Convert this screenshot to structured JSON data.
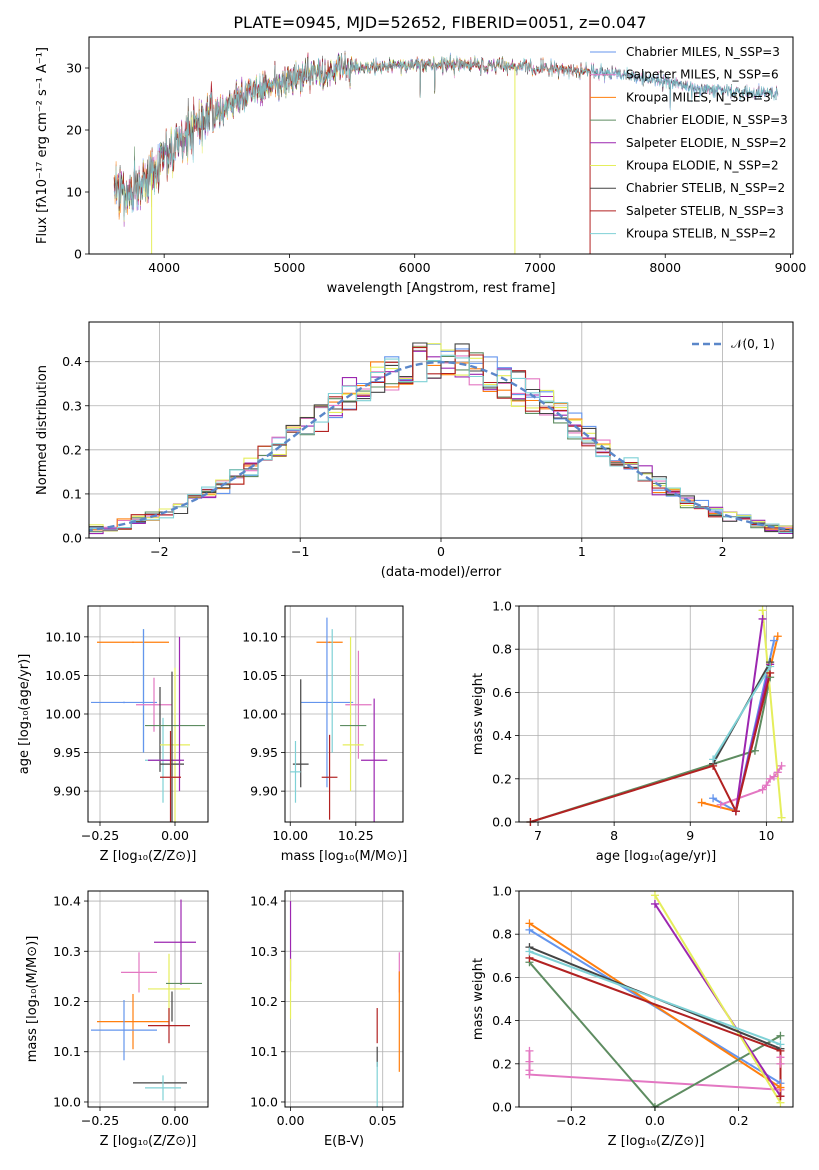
{
  "colors": {
    "chabrier_miles": "#6495ed",
    "salpeter_miles": "#e377c2",
    "kroupa_miles": "#ff7f0e",
    "chabrier_elodie": "#5e8c61",
    "salpeter_elodie": "#9c27b0",
    "kroupa_elodie": "#e5ee5c",
    "chabrier_stelib": "#444444",
    "salpeter_stelib": "#b22222",
    "kroupa_stelib": "#7fd1d6",
    "normal": "#5b87c9",
    "grid": "#b0b0b0"
  },
  "chart_data": [
    {
      "id": "spectrum",
      "type": "line",
      "title": "PLATE=0945, MJD=52652, FIBERID=0051, z=0.047",
      "xlabel": "wavelength [Angstrom, rest frame]",
      "ylabel": "Flux [fλ10⁻¹⁷ erg cm⁻² s⁻¹ A⁻¹]",
      "xlim": [
        3400,
        9020
      ],
      "ylim": [
        0,
        35
      ],
      "xticks": [
        4000,
        5000,
        6000,
        7000,
        8000,
        9000
      ],
      "yticks": [
        0,
        10,
        20,
        30
      ],
      "grid": false,
      "legend_position": "top-right",
      "continuum": [
        [
          3600,
          10
        ],
        [
          3800,
          11
        ],
        [
          3950,
          14
        ],
        [
          4100,
          18
        ],
        [
          4300,
          21
        ],
        [
          4500,
          24
        ],
        [
          4700,
          26
        ],
        [
          5000,
          28
        ],
        [
          5200,
          29
        ],
        [
          5500,
          30
        ],
        [
          6000,
          30.5
        ],
        [
          6500,
          30.5
        ],
        [
          7000,
          30
        ],
        [
          7400,
          29.5
        ],
        [
          7800,
          28.5
        ],
        [
          8200,
          27
        ],
        [
          8600,
          26
        ],
        [
          8900,
          26
        ]
      ],
      "series": [
        {
          "name": "Chabrier MILES, N_SSP=3",
          "color_key": "chabrier_miles",
          "x_end": 8900
        },
        {
          "name": "Salpeter MILES, N_SSP=6",
          "color_key": "salpeter_miles",
          "x_end": 8900
        },
        {
          "name": "Kroupa MILES, N_SSP=3",
          "color_key": "kroupa_miles",
          "x_end": 7400
        },
        {
          "name": "Chabrier ELODIE, N_SSP=3",
          "color_key": "chabrier_elodie",
          "x_end": 6800
        },
        {
          "name": "Salpeter ELODIE, N_SSP=2",
          "color_key": "salpeter_elodie",
          "x_end": 6800
        },
        {
          "name": "Kroupa ELODIE, N_SSP=2",
          "color_key": "kroupa_elodie",
          "x_end": 6800
        },
        {
          "name": "Chabrier STELIB, N_SSP=2",
          "color_key": "chabrier_stelib",
          "x_end": 8900
        },
        {
          "name": "Salpeter STELIB, N_SSP=3",
          "color_key": "salpeter_stelib",
          "x_end": 7400
        },
        {
          "name": "Kroupa STELIB, N_SSP=2",
          "color_key": "kroupa_stelib",
          "x_end": 8900
        }
      ],
      "drop_lines": [
        {
          "x": 3900,
          "color_key": "kroupa_elodie"
        },
        {
          "x": 6800,
          "color_key": "kroupa_elodie"
        },
        {
          "x": 7400,
          "color_key": "salpeter_stelib"
        }
      ]
    },
    {
      "id": "residuals",
      "type": "histogram",
      "xlabel": "(data-model)/error",
      "ylabel": "Normed distribution",
      "xlim": [
        -2.5,
        2.5
      ],
      "ylim": [
        0,
        0.49
      ],
      "xticks": [
        -2,
        -1,
        0,
        1,
        2
      ],
      "yticks": [
        0.0,
        0.1,
        0.2,
        0.3,
        0.4
      ],
      "grid": true,
      "legend_position": "top-right",
      "legend_label": "𝒩(0, 1)",
      "bin_width": 0.1
    },
    {
      "id": "age_vs_Z",
      "type": "errorbar",
      "xlabel": "Z [log₁₀(Z/Z⊙)]",
      "ylabel": "age  [log₁₀(age/yr)]",
      "xlim": [
        -0.29,
        0.11
      ],
      "ylim": [
        9.86,
        10.14
      ],
      "xticks": [
        -0.25,
        0.0
      ],
      "yticks": [
        9.9,
        9.95,
        10.0,
        10.05,
        10.1
      ],
      "points": [
        {
          "c": "kroupa_miles",
          "x": -0.14,
          "y": 10.093,
          "xerr": 0.12,
          "yerr": 0.001
        },
        {
          "c": "chabrier_miles",
          "x": -0.17,
          "y": 10.015,
          "xerr": 0.11,
          "yerr": 0.001
        },
        {
          "c": "kroupa_stelib",
          "x": -0.105,
          "y": 10.03,
          "xerr": 0.0,
          "yerr": 0.08
        },
        {
          "c": "chabrier_miles",
          "x": -0.105,
          "y": 10.03,
          "xerr": 0.0,
          "yerr": 0.08
        },
        {
          "c": "salpeter_miles",
          "x": -0.07,
          "y": 10.012,
          "xerr": 0.06,
          "yerr": 0.035
        },
        {
          "c": "chabrier_stelib",
          "x": -0.05,
          "y": 9.98,
          "xerr": 0.0,
          "yerr": 0.055
        },
        {
          "c": "kroupa_stelib",
          "x": -0.04,
          "y": 9.94,
          "xerr": 0.06,
          "yerr": 0.055
        },
        {
          "c": "kroupa_elodie",
          "x": 0.0,
          "y": 9.96,
          "xerr": 0.05,
          "yerr": 0.1
        },
        {
          "c": "chabrier_elodie",
          "x": 0.0,
          "y": 9.985,
          "xerr": 0.1,
          "yerr": 0.0
        },
        {
          "c": "salpeter_elodie",
          "x": -0.03,
          "y": 9.94,
          "xerr": 0.0,
          "yerr": 0.0
        },
        {
          "c": "salpeter_elodie",
          "x": -0.03,
          "y": 9.94,
          "xerr": 0.06,
          "yerr": 0.0
        },
        {
          "c": "chabrier_stelib",
          "x": -0.01,
          "y": 9.935,
          "xerr": 0.04,
          "yerr": 0.12
        },
        {
          "c": "salpeter_elodie",
          "x": 0.015,
          "y": 10.0,
          "xerr": 0.0,
          "yerr": 0.1
        },
        {
          "c": "salpeter_stelib",
          "x": -0.015,
          "y": 9.918,
          "xerr": 0.035,
          "yerr": 0.06
        }
      ]
    },
    {
      "id": "age_vs_mass",
      "type": "errorbar",
      "xlabel": "mass [log₁₀(M/M⊙)]",
      "ylabel": "",
      "xlim": [
        9.98,
        10.43
      ],
      "ylim": [
        9.86,
        10.14
      ],
      "xticks": [
        10.0,
        10.25
      ],
      "yticks": [
        9.9,
        9.95,
        10.0,
        10.05,
        10.1
      ],
      "points": [
        {
          "c": "kroupa_miles",
          "x": 10.15,
          "y": 10.093,
          "xerr": 0.05,
          "yerr": 0.001
        },
        {
          "c": "chabrier_miles",
          "x": 10.14,
          "y": 10.015,
          "xerr": 0.1,
          "yerr": 0.11
        },
        {
          "c": "kroupa_stelib",
          "x": 10.16,
          "y": 10.03,
          "xerr": 0.0,
          "yerr": 0.08
        },
        {
          "c": "salpeter_miles",
          "x": 10.26,
          "y": 10.012,
          "xerr": 0.05,
          "yerr": 0.07
        },
        {
          "c": "kroupa_elodie",
          "x": 10.23,
          "y": 10.0,
          "xerr": 0.0,
          "yerr": 0.1
        },
        {
          "c": "chabrier_elodie",
          "x": 10.24,
          "y": 9.985,
          "xerr": 0.05,
          "yerr": 0.0
        },
        {
          "c": "kroupa_elodie",
          "x": 10.24,
          "y": 9.96,
          "xerr": 0.04,
          "yerr": 0.0
        },
        {
          "c": "chabrier_stelib",
          "x": 10.04,
          "y": 9.975,
          "xerr": 0.0,
          "yerr": 0.07
        },
        {
          "c": "chabrier_stelib",
          "x": 10.04,
          "y": 9.935,
          "xerr": 0.03,
          "yerr": 0.0
        },
        {
          "c": "kroupa_stelib",
          "x": 10.02,
          "y": 9.925,
          "xerr": 0.02,
          "yerr": 0.04
        },
        {
          "c": "salpeter_elodie",
          "x": 10.32,
          "y": 9.94,
          "xerr": 0.05,
          "yerr": 0.08
        },
        {
          "c": "salpeter_stelib",
          "x": 10.15,
          "y": 9.918,
          "xerr": 0.03,
          "yerr": 0.055
        },
        {
          "c": "salpeter_elodie",
          "x": 10.3,
          "y": 10.005,
          "xerr": 0.0,
          "yerr": 0.0
        }
      ]
    },
    {
      "id": "weight_vs_age",
      "type": "line",
      "xlabel": "age  [log₁₀(age/yr)]",
      "ylabel": "mass weight",
      "xlim": [
        6.75,
        10.35
      ],
      "ylim": [
        0,
        1.0
      ],
      "xticks": [
        7,
        8,
        9,
        10
      ],
      "yticks": [
        0.0,
        0.2,
        0.4,
        0.6,
        0.8,
        1.0
      ],
      "series": [
        {
          "c": "chabrier_miles",
          "x": [
            9.3,
            9.6,
            10.1
          ],
          "y": [
            0.11,
            0.05,
            0.84
          ]
        },
        {
          "c": "salpeter_miles",
          "x": [
            9.4,
            9.95,
            10.0,
            10.05,
            10.1,
            10.15,
            10.2
          ],
          "y": [
            0.08,
            0.15,
            0.17,
            0.2,
            0.21,
            0.23,
            0.26
          ]
        },
        {
          "c": "kroupa_miles",
          "x": [
            9.15,
            9.6,
            10.15
          ],
          "y": [
            0.09,
            0.05,
            0.86
          ]
        },
        {
          "c": "chabrier_elodie",
          "x": [
            6.9,
            9.85,
            10.05
          ],
          "y": [
            0.0,
            0.33,
            0.67
          ]
        },
        {
          "c": "salpeter_elodie",
          "x": [
            9.95,
            9.6,
            10.05
          ],
          "y": [
            0.94,
            0.05,
            0.73
          ]
        },
        {
          "c": "kroupa_elodie",
          "x": [
            9.95,
            10.2
          ],
          "y": [
            0.98,
            0.02
          ]
        },
        {
          "c": "chabrier_stelib",
          "x": [
            9.3,
            10.05
          ],
          "y": [
            0.27,
            0.74
          ]
        },
        {
          "c": "salpeter_stelib",
          "x": [
            6.9,
            9.3,
            9.6,
            10.05
          ],
          "y": [
            0.0,
            0.26,
            0.05,
            0.69
          ]
        },
        {
          "c": "kroupa_stelib",
          "x": [
            9.3,
            10.05
          ],
          "y": [
            0.29,
            0.72
          ]
        }
      ]
    },
    {
      "id": "mass_vs_Z",
      "type": "errorbar",
      "xlabel": "Z [log₁₀(Z/Z⊙)]",
      "ylabel": "mass [log₁₀(M/M⊙)]",
      "xlim": [
        -0.29,
        0.11
      ],
      "ylim": [
        9.99,
        10.42
      ],
      "xticks": [
        -0.25,
        0.0
      ],
      "yticks": [
        10.0,
        10.1,
        10.2,
        10.3,
        10.4
      ],
      "points": [
        {
          "c": "kroupa_miles",
          "x": -0.14,
          "y": 10.16,
          "xerr": 0.12,
          "yerr": 0.055
        },
        {
          "c": "chabrier_miles",
          "x": -0.17,
          "y": 10.143,
          "xerr": 0.11,
          "yerr": 0.06
        },
        {
          "c": "salpeter_miles",
          "x": -0.12,
          "y": 10.258,
          "xerr": 0.06,
          "yerr": 0.04
        },
        {
          "c": "salpeter_elodie",
          "x": 0.0,
          "y": 10.318,
          "xerr": 0.07,
          "yerr": 0.0
        },
        {
          "c": "salpeter_elodie",
          "x": 0.02,
          "y": 10.318,
          "xerr": 0.0,
          "yerr": 0.085
        },
        {
          "c": "kroupa_elodie",
          "x": -0.02,
          "y": 10.225,
          "xerr": 0.07,
          "yerr": 0.07
        },
        {
          "c": "chabrier_elodie",
          "x": 0.03,
          "y": 10.236,
          "xerr": 0.06,
          "yerr": 0.0
        },
        {
          "c": "salpeter_stelib",
          "x": -0.02,
          "y": 10.152,
          "xerr": 0.07,
          "yerr": 0.035
        },
        {
          "c": "chabrier_stelib",
          "x": -0.05,
          "y": 10.038,
          "xerr": 0.09,
          "yerr": 0.0
        },
        {
          "c": "chabrier_stelib",
          "x": -0.01,
          "y": 10.19,
          "xerr": 0.0,
          "yerr": 0.03
        },
        {
          "c": "kroupa_stelib",
          "x": -0.04,
          "y": 10.028,
          "xerr": 0.06,
          "yerr": 0.025
        }
      ]
    },
    {
      "id": "mass_vs_ebv",
      "type": "errorbar",
      "xlabel": "E(B-V)",
      "ylabel": "",
      "xlim": [
        -0.003,
        0.061
      ],
      "ylim": [
        9.99,
        10.42
      ],
      "xticks": [
        0.0,
        0.05
      ],
      "yticks": [
        10.0,
        10.1,
        10.2,
        10.3,
        10.4
      ],
      "points": [
        {
          "c": "salpeter_elodie",
          "x": 0.0,
          "y": 10.32,
          "xerr": 0.0,
          "yerr": 0.08
        },
        {
          "c": "kroupa_elodie",
          "x": 0.0,
          "y": 10.225,
          "xerr": 0.0,
          "yerr": 0.06
        },
        {
          "c": "salpeter_stelib",
          "x": 0.047,
          "y": 10.152,
          "xerr": 0.0,
          "yerr": 0.035
        },
        {
          "c": "chabrier_stelib",
          "x": 0.047,
          "y": 10.09,
          "xerr": 0.0,
          "yerr": 0.02
        },
        {
          "c": "kroupa_stelib",
          "x": 0.047,
          "y": 10.03,
          "xerr": 0.0,
          "yerr": 0.05
        },
        {
          "c": "salpeter_miles",
          "x": 0.059,
          "y": 10.258,
          "xerr": 0.0,
          "yerr": 0.04
        },
        {
          "c": "kroupa_miles",
          "x": 0.059,
          "y": 10.16,
          "xerr": 0.0,
          "yerr": 0.1
        }
      ]
    },
    {
      "id": "weight_vs_Z",
      "type": "line",
      "xlabel": "Z [log₁₀(Z/Z⊙)]",
      "ylabel": "mass weight",
      "xlim": [
        -0.325,
        0.33
      ],
      "ylim": [
        0,
        1.0
      ],
      "xticks": [
        -0.2,
        0.0,
        0.2
      ],
      "yticks": [
        0.0,
        0.2,
        0.4,
        0.6,
        0.8,
        1.0
      ],
      "series": [
        {
          "c": "chabrier_miles",
          "x": [
            -0.3,
            0.3,
            0.3
          ],
          "y": [
            0.82,
            0.11,
            0.05
          ]
        },
        {
          "c": "salpeter_miles",
          "x": [
            -0.3,
            -0.3,
            -0.3,
            -0.3,
            0.3,
            0.3,
            0.3
          ],
          "y": [
            0.26,
            0.21,
            0.17,
            0.15,
            0.08,
            0.2,
            0.23
          ]
        },
        {
          "c": "kroupa_miles",
          "x": [
            -0.3,
            0.3,
            0.3
          ],
          "y": [
            0.85,
            0.09,
            0.05
          ]
        },
        {
          "c": "chabrier_elodie",
          "x": [
            -0.3,
            0.0,
            0.3
          ],
          "y": [
            0.67,
            0.0,
            0.33
          ]
        },
        {
          "c": "salpeter_elodie",
          "x": [
            0.0,
            0.3,
            0.3
          ],
          "y": [
            0.94,
            0.05,
            0.05
          ]
        },
        {
          "c": "kroupa_elodie",
          "x": [
            0.0,
            0.3
          ],
          "y": [
            0.98,
            0.02
          ]
        },
        {
          "c": "chabrier_stelib",
          "x": [
            -0.3,
            0.3
          ],
          "y": [
            0.74,
            0.27
          ]
        },
        {
          "c": "salpeter_stelib",
          "x": [
            -0.3,
            0.3,
            0.3
          ],
          "y": [
            0.69,
            0.26,
            0.05
          ]
        },
        {
          "c": "kroupa_stelib",
          "x": [
            -0.3,
            0.3
          ],
          "y": [
            0.72,
            0.29
          ]
        }
      ]
    }
  ]
}
